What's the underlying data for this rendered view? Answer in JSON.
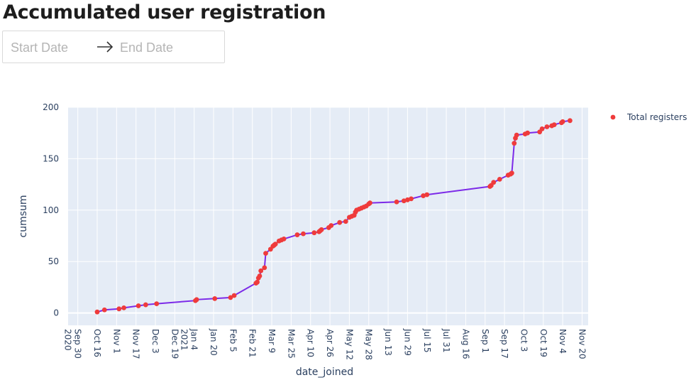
{
  "page": {
    "title": "Accumulated user registration"
  },
  "date_range": {
    "start_placeholder": "Start Date",
    "end_placeholder": "End Date",
    "arrow_icon": "arrow-right-icon"
  },
  "colors": {
    "plot_bg": "#e5ecf6",
    "line": "#7c2ae8",
    "marker": "#ef3b3b",
    "axis_text": "#2a3f5f"
  },
  "chart_data": {
    "type": "scatter",
    "xlabel": "date_joined",
    "ylabel": "cumsum",
    "ylim": [
      -12,
      200
    ],
    "xlim": [
      "2020-09-22",
      "2021-11-25"
    ],
    "yticks": [
      0,
      50,
      100,
      150,
      200
    ],
    "xticks": [
      {
        "date": "2020-09-30",
        "label": "Sep 30",
        "sub": "2020"
      },
      {
        "date": "2020-10-16",
        "label": "Oct 16",
        "sub": ""
      },
      {
        "date": "2020-11-01",
        "label": "Nov 1",
        "sub": ""
      },
      {
        "date": "2020-11-17",
        "label": "Nov 17",
        "sub": ""
      },
      {
        "date": "2020-12-03",
        "label": "Dec 3",
        "sub": ""
      },
      {
        "date": "2020-12-19",
        "label": "Dec 19",
        "sub": ""
      },
      {
        "date": "2021-01-04",
        "label": "Jan 4",
        "sub": "2021"
      },
      {
        "date": "2021-01-20",
        "label": "Jan 20",
        "sub": ""
      },
      {
        "date": "2021-02-05",
        "label": "Feb 5",
        "sub": ""
      },
      {
        "date": "2021-02-21",
        "label": "Feb 21",
        "sub": ""
      },
      {
        "date": "2021-03-09",
        "label": "Mar 9",
        "sub": ""
      },
      {
        "date": "2021-03-25",
        "label": "Mar 25",
        "sub": ""
      },
      {
        "date": "2021-04-10",
        "label": "Apr 10",
        "sub": ""
      },
      {
        "date": "2021-04-26",
        "label": "Apr 26",
        "sub": ""
      },
      {
        "date": "2021-05-12",
        "label": "May 12",
        "sub": ""
      },
      {
        "date": "2021-05-28",
        "label": "May 28",
        "sub": ""
      },
      {
        "date": "2021-06-13",
        "label": "Jun 13",
        "sub": ""
      },
      {
        "date": "2021-06-29",
        "label": "Jun 29",
        "sub": ""
      },
      {
        "date": "2021-07-15",
        "label": "Jul 15",
        "sub": ""
      },
      {
        "date": "2021-07-31",
        "label": "Jul 31",
        "sub": ""
      },
      {
        "date": "2021-08-16",
        "label": "Aug 16",
        "sub": ""
      },
      {
        "date": "2021-09-01",
        "label": "Sep 1",
        "sub": ""
      },
      {
        "date": "2021-09-17",
        "label": "Sep 17",
        "sub": ""
      },
      {
        "date": "2021-10-03",
        "label": "Oct 3",
        "sub": ""
      },
      {
        "date": "2021-10-19",
        "label": "Oct 19",
        "sub": ""
      },
      {
        "date": "2021-11-04",
        "label": "Nov 4",
        "sub": ""
      },
      {
        "date": "2021-11-20",
        "label": "Nov 20",
        "sub": ""
      }
    ],
    "legend": {
      "position": "top-right",
      "entries": [
        "Total registers"
      ]
    },
    "grid": true,
    "series": [
      {
        "name": "Total registers",
        "mode": "lines+markers",
        "points": [
          [
            "2020-10-16",
            1
          ],
          [
            "2020-10-22",
            3
          ],
          [
            "2020-11-03",
            4
          ],
          [
            "2020-11-07",
            5
          ],
          [
            "2020-11-19",
            7
          ],
          [
            "2020-11-25",
            8
          ],
          [
            "2020-12-04",
            9
          ],
          [
            "2021-01-05",
            12
          ],
          [
            "2021-01-06",
            13
          ],
          [
            "2021-01-21",
            14
          ],
          [
            "2021-02-03",
            15
          ],
          [
            "2021-02-06",
            17
          ],
          [
            "2021-02-24",
            29
          ],
          [
            "2021-02-25",
            30
          ],
          [
            "2021-02-26",
            34
          ],
          [
            "2021-02-27",
            36
          ],
          [
            "2021-02-28",
            41
          ],
          [
            "2021-03-03",
            44
          ],
          [
            "2021-03-04",
            58
          ],
          [
            "2021-03-08",
            62
          ],
          [
            "2021-03-10",
            65
          ],
          [
            "2021-03-11",
            66
          ],
          [
            "2021-03-12",
            67
          ],
          [
            "2021-03-15",
            70
          ],
          [
            "2021-03-17",
            71
          ],
          [
            "2021-03-19",
            72
          ],
          [
            "2021-03-30",
            76
          ],
          [
            "2021-04-04",
            77
          ],
          [
            "2021-04-13",
            78
          ],
          [
            "2021-04-17",
            79
          ],
          [
            "2021-04-18",
            80
          ],
          [
            "2021-04-19",
            81
          ],
          [
            "2021-04-25",
            83
          ],
          [
            "2021-04-27",
            85
          ],
          [
            "2021-05-04",
            88
          ],
          [
            "2021-05-09",
            89
          ],
          [
            "2021-05-12",
            93
          ],
          [
            "2021-05-14",
            94
          ],
          [
            "2021-05-16",
            95
          ],
          [
            "2021-05-17",
            98
          ],
          [
            "2021-05-18",
            100
          ],
          [
            "2021-05-20",
            101
          ],
          [
            "2021-05-22",
            102
          ],
          [
            "2021-05-24",
            103
          ],
          [
            "2021-05-26",
            104
          ],
          [
            "2021-05-28",
            106
          ],
          [
            "2021-05-29",
            107
          ],
          [
            "2021-06-20",
            108
          ],
          [
            "2021-06-26",
            109
          ],
          [
            "2021-06-29",
            110
          ],
          [
            "2021-07-02",
            111
          ],
          [
            "2021-07-12",
            114
          ],
          [
            "2021-07-15",
            115
          ],
          [
            "2021-09-05",
            123
          ],
          [
            "2021-09-06",
            124
          ],
          [
            "2021-09-08",
            127
          ],
          [
            "2021-09-13",
            130
          ],
          [
            "2021-09-20",
            134
          ],
          [
            "2021-09-22",
            135
          ],
          [
            "2021-09-23",
            136
          ],
          [
            "2021-09-25",
            165
          ],
          [
            "2021-09-26",
            170
          ],
          [
            "2021-09-27",
            173
          ],
          [
            "2021-10-04",
            174
          ],
          [
            "2021-10-06",
            175
          ],
          [
            "2021-10-16",
            176
          ],
          [
            "2021-10-18",
            179
          ],
          [
            "2021-10-22",
            181
          ],
          [
            "2021-10-26",
            182
          ],
          [
            "2021-10-28",
            183
          ],
          [
            "2021-11-03",
            185
          ],
          [
            "2021-11-04",
            186
          ],
          [
            "2021-11-10",
            187
          ]
        ]
      }
    ]
  }
}
